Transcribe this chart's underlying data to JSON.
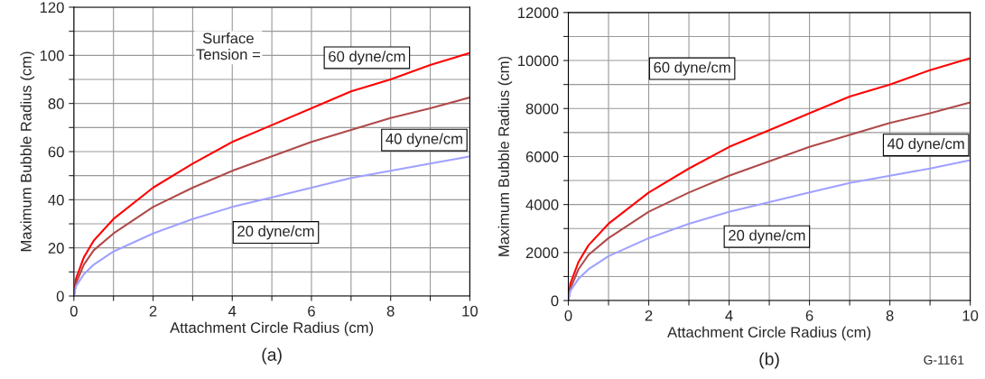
{
  "chart_data": [
    {
      "type": "line",
      "title": "(a)",
      "xlabel": "Attachment Circle Radius (cm)",
      "ylabel": "Maximum Bubble Radius (cm)",
      "x": [
        0,
        0.05,
        0.25,
        0.5,
        1,
        2,
        3,
        4,
        5,
        6,
        7,
        8,
        9,
        10
      ],
      "series": [
        {
          "color": "#ff0000",
          "values": [
            0,
            7,
            16,
            23,
            32,
            45,
            55,
            64,
            71,
            78,
            85,
            90,
            96,
            101
          ]
        },
        {
          "color": "#b04a4a",
          "values": [
            0,
            5,
            13,
            19,
            26,
            37,
            45,
            52,
            58,
            64,
            69,
            74,
            78,
            82.5
          ]
        },
        {
          "color": "#a0a0ff",
          "values": [
            0,
            4,
            9,
            13,
            18.5,
            26,
            32,
            37,
            41,
            45,
            49,
            52,
            55,
            58
          ]
        }
      ],
      "xlim": [
        0,
        10
      ],
      "xticks": [
        0,
        {
          "value": 1,
          "label": null
        },
        2,
        {
          "value": 3,
          "label": null
        },
        4,
        {
          "value": 5,
          "label": null
        },
        6,
        {
          "value": 7,
          "label": null
        },
        8,
        {
          "value": 9,
          "label": null
        },
        10
      ],
      "ylim": [
        0,
        120
      ],
      "yticks": [
        0,
        {
          "value": 10,
          "label": null
        },
        20,
        {
          "value": 30,
          "label": null
        },
        40,
        {
          "value": 50,
          "label": null
        },
        60,
        {
          "value": 70,
          "label": null
        },
        80,
        {
          "value": 90,
          "label": null
        },
        100,
        {
          "value": 110,
          "label": null
        },
        120
      ],
      "grid": true,
      "annotations": [
        "Surface\nTension =",
        "60 dyne/cm",
        "40 dyne/cm",
        "20 dyne/cm"
      ]
    },
    {
      "type": "line",
      "title": "(b)",
      "xlabel": "Attachment Circle Radius (cm)",
      "ylabel": "Maximum Bubble Radius (cm)",
      "x": [
        0,
        0.05,
        0.25,
        0.5,
        1,
        2,
        3,
        4,
        5,
        6,
        7,
        8,
        9,
        10
      ],
      "series": [
        {
          "color": "#ff0000",
          "values": [
            0,
            700,
            1600,
            2300,
            3200,
            4500,
            5500,
            6400,
            7100,
            7800,
            8500,
            9000,
            9600,
            10100
          ]
        },
        {
          "color": "#b04a4a",
          "values": [
            0,
            500,
            1300,
            1900,
            2600,
            3700,
            4500,
            5200,
            5800,
            6400,
            6900,
            7400,
            7800,
            8250
          ]
        },
        {
          "color": "#a0a0ff",
          "values": [
            0,
            400,
            900,
            1300,
            1850,
            2600,
            3200,
            3700,
            4100,
            4500,
            4900,
            5200,
            5500,
            5850
          ]
        }
      ],
      "xlim": [
        0,
        10
      ],
      "xticks": [
        0,
        {
          "value": 1,
          "label": null
        },
        2,
        {
          "value": 3,
          "label": null
        },
        4,
        {
          "value": 5,
          "label": null
        },
        6,
        {
          "value": 7,
          "label": null
        },
        8,
        {
          "value": 9,
          "label": null
        },
        10
      ],
      "ylim": [
        0,
        12000
      ],
      "yticks": [
        0,
        {
          "value": 1000,
          "label": null
        },
        2000,
        {
          "value": 3000,
          "label": null
        },
        4000,
        {
          "value": 5000,
          "label": null
        },
        6000,
        {
          "value": 7000,
          "label": null
        },
        8000,
        {
          "value": 9000,
          "label": null
        },
        10000,
        {
          "value": 11000,
          "label": null
        },
        12000
      ],
      "grid": true,
      "annotations": [
        "60 dyne/cm",
        "40 dyne/cm",
        "20 dyne/cm",
        "G-1161"
      ]
    }
  ]
}
